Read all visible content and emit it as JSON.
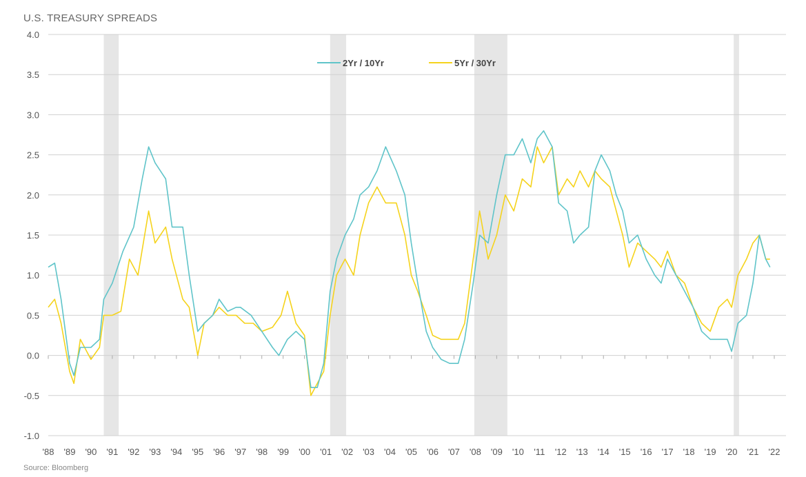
{
  "chart_data": {
    "type": "line",
    "title": "U.S. TREASURY SPREADS",
    "source": "Source: Bloomberg",
    "ylim": [
      -1.0,
      4.0
    ],
    "yticks": [
      "4.0",
      "3.5",
      "3.0",
      "2.5",
      "2.0",
      "1.5",
      "1.0",
      "0.5",
      "0.0",
      "-0.5",
      "-1.0"
    ],
    "xlim": [
      1988,
      2022
    ],
    "xticks": [
      "'88",
      "'89",
      "'90",
      "'91",
      "'92",
      "'93",
      "'94",
      "'95",
      "'96",
      "'97",
      "'98",
      "'99",
      "'00",
      "'01",
      "'02",
      "'03",
      "'04",
      "'05",
      "'06",
      "'07",
      "'08",
      "'09",
      "'10",
      "'11",
      "'12",
      "'13",
      "'14",
      "'15",
      "'16",
      "'17",
      "'18",
      "'19",
      "'20",
      "'21",
      "'22"
    ],
    "grid": "horizontal",
    "legend_position": "top-center",
    "recessions": [
      [
        1990.6,
        1991.3
      ],
      [
        2001.2,
        2001.95
      ],
      [
        2007.95,
        2009.5
      ],
      [
        2020.1,
        2020.35
      ]
    ],
    "colors": {
      "recession": "#e6e6e6",
      "grid": "#d0d0d0"
    },
    "series": [
      {
        "name": "2Yr / 10Yr",
        "color": "#5fc4c9",
        "x": [
          1988.0,
          1988.3,
          1988.6,
          1989.0,
          1989.2,
          1989.5,
          1990.0,
          1990.4,
          1990.6,
          1991.0,
          1991.5,
          1992.0,
          1992.4,
          1992.7,
          1993.0,
          1993.5,
          1993.8,
          1994.3,
          1994.6,
          1995.0,
          1995.3,
          1995.7,
          1996.0,
          1996.4,
          1996.8,
          1997.0,
          1997.5,
          1998.0,
          1998.5,
          1998.8,
          1999.2,
          1999.6,
          2000.0,
          2000.3,
          2000.6,
          2000.9,
          2001.2,
          2001.5,
          2001.9,
          2002.3,
          2002.6,
          2003.0,
          2003.4,
          2003.8,
          2004.3,
          2004.7,
          2005.0,
          2005.3,
          2005.7,
          2006.0,
          2006.4,
          2006.8,
          2007.2,
          2007.5,
          2007.9,
          2008.2,
          2008.6,
          2009.0,
          2009.4,
          2009.8,
          2010.2,
          2010.6,
          2010.9,
          2011.2,
          2011.6,
          2011.9,
          2012.3,
          2012.6,
          2012.9,
          2013.3,
          2013.6,
          2013.9,
          2014.3,
          2014.6,
          2014.9,
          2015.2,
          2015.6,
          2016.0,
          2016.4,
          2016.7,
          2017.0,
          2017.4,
          2017.8,
          2018.2,
          2018.6,
          2019.0,
          2019.4,
          2019.8,
          2020.0,
          2020.3,
          2020.7,
          2021.0,
          2021.3,
          2021.6,
          2021.8
        ],
        "y": [
          1.1,
          1.15,
          0.7,
          -0.1,
          -0.25,
          0.1,
          0.1,
          0.2,
          0.7,
          0.9,
          1.3,
          1.6,
          2.2,
          2.6,
          2.4,
          2.2,
          1.6,
          1.6,
          1.0,
          0.3,
          0.4,
          0.5,
          0.7,
          0.55,
          0.6,
          0.6,
          0.5,
          0.3,
          0.1,
          0.0,
          0.2,
          0.3,
          0.2,
          -0.4,
          -0.4,
          -0.1,
          0.8,
          1.2,
          1.5,
          1.7,
          2.0,
          2.1,
          2.3,
          2.6,
          2.3,
          2.0,
          1.4,
          0.9,
          0.3,
          0.1,
          -0.05,
          -0.1,
          -0.1,
          0.2,
          0.9,
          1.5,
          1.4,
          2.0,
          2.5,
          2.5,
          2.7,
          2.4,
          2.7,
          2.8,
          2.6,
          1.9,
          1.8,
          1.4,
          1.5,
          1.6,
          2.3,
          2.5,
          2.3,
          2.0,
          1.8,
          1.4,
          1.5,
          1.2,
          1.0,
          0.9,
          1.2,
          1.0,
          0.8,
          0.6,
          0.3,
          0.2,
          0.2,
          0.2,
          0.05,
          0.4,
          0.5,
          0.9,
          1.5,
          1.2,
          1.1
        ]
      },
      {
        "name": "5Yr / 30Yr",
        "color": "#f5d31c",
        "x": [
          1988.0,
          1988.3,
          1988.6,
          1989.0,
          1989.2,
          1989.5,
          1990.0,
          1990.4,
          1990.6,
          1991.0,
          1991.4,
          1991.8,
          1992.2,
          1992.7,
          1993.0,
          1993.5,
          1993.8,
          1994.3,
          1994.6,
          1995.0,
          1995.3,
          1995.7,
          1996.0,
          1996.4,
          1996.8,
          1997.2,
          1997.6,
          1998.0,
          1998.5,
          1998.9,
          1999.2,
          1999.6,
          2000.0,
          2000.3,
          2000.6,
          2000.9,
          2001.2,
          2001.5,
          2001.9,
          2002.3,
          2002.6,
          2003.0,
          2003.4,
          2003.8,
          2004.3,
          2004.7,
          2005.0,
          2005.3,
          2005.7,
          2006.0,
          2006.4,
          2006.8,
          2007.2,
          2007.5,
          2007.9,
          2008.2,
          2008.6,
          2009.0,
          2009.4,
          2009.8,
          2010.2,
          2010.6,
          2010.9,
          2011.2,
          2011.6,
          2011.9,
          2012.3,
          2012.6,
          2012.9,
          2013.3,
          2013.6,
          2013.9,
          2014.3,
          2014.6,
          2014.9,
          2015.2,
          2015.6,
          2016.0,
          2016.4,
          2016.7,
          2017.0,
          2017.4,
          2017.8,
          2018.2,
          2018.6,
          2019.0,
          2019.4,
          2019.8,
          2020.0,
          2020.3,
          2020.7,
          2021.0,
          2021.3,
          2021.6,
          2021.8
        ],
        "y": [
          0.6,
          0.7,
          0.4,
          -0.2,
          -0.35,
          0.2,
          -0.05,
          0.1,
          0.5,
          0.5,
          0.55,
          1.2,
          1.0,
          1.8,
          1.4,
          1.6,
          1.2,
          0.7,
          0.6,
          0.0,
          0.4,
          0.5,
          0.6,
          0.5,
          0.5,
          0.4,
          0.4,
          0.3,
          0.35,
          0.5,
          0.8,
          0.4,
          0.25,
          -0.5,
          -0.35,
          -0.2,
          0.5,
          1.0,
          1.2,
          1.0,
          1.5,
          1.9,
          2.1,
          1.9,
          1.9,
          1.5,
          1.0,
          0.8,
          0.5,
          0.25,
          0.2,
          0.2,
          0.2,
          0.4,
          1.2,
          1.8,
          1.2,
          1.5,
          2.0,
          1.8,
          2.2,
          2.1,
          2.6,
          2.4,
          2.6,
          2.0,
          2.2,
          2.1,
          2.3,
          2.1,
          2.3,
          2.2,
          2.1,
          1.8,
          1.5,
          1.1,
          1.4,
          1.3,
          1.2,
          1.1,
          1.3,
          1.0,
          0.9,
          0.6,
          0.4,
          0.3,
          0.6,
          0.7,
          0.6,
          1.0,
          1.2,
          1.4,
          1.5,
          1.2,
          1.2
        ]
      }
    ]
  }
}
